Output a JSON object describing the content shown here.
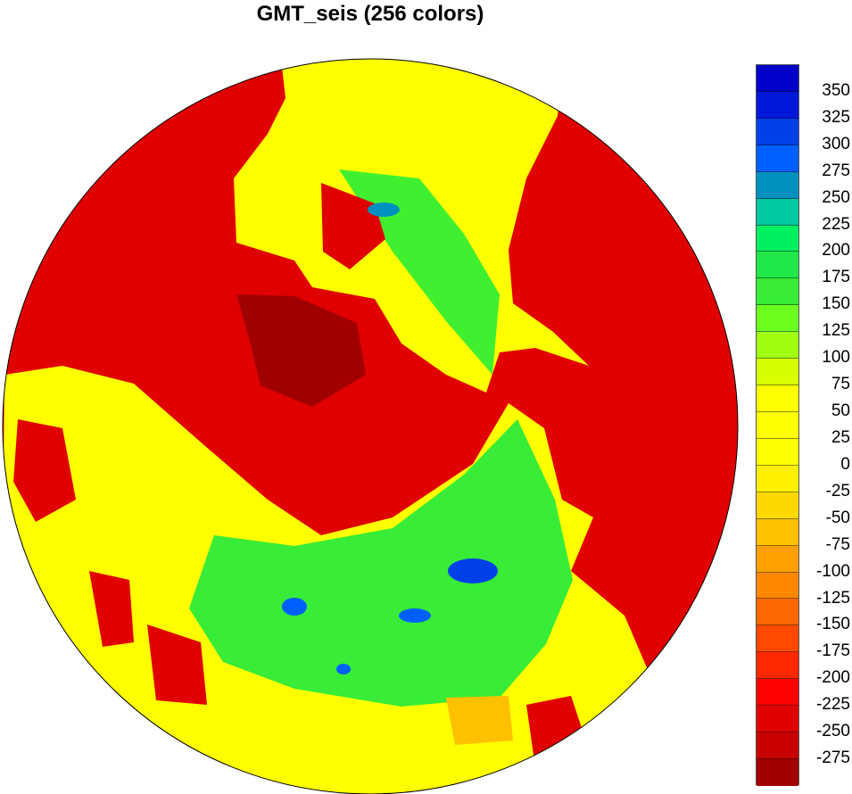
{
  "title": "GMT_seis (256 colors)",
  "map": {
    "projection": "polar-stereographic",
    "colors": {
      "ocean_low": "#e00000",
      "ice_sheet": "#a00000",
      "land_mid": "#ffff00",
      "high": "#20e848",
      "peak": "#0040e8",
      "orange": "#ffc000"
    }
  },
  "colorbar": {
    "labels": [
      "350",
      "325",
      "300",
      "275",
      "250",
      "225",
      "200",
      "175",
      "150",
      "125",
      "100",
      "75",
      "50",
      "25",
      "0",
      "-25",
      "-50",
      "-75",
      "-100",
      "-125",
      "-150",
      "-175",
      "-200",
      "-225",
      "-250",
      "-275"
    ],
    "colors": [
      "#0000c8",
      "#0018d8",
      "#0040e8",
      "#0060ff",
      "#0090c0",
      "#00c8a0",
      "#00f060",
      "#20e848",
      "#38ec38",
      "#6cff20",
      "#a0ff10",
      "#d8ff00",
      "#ffff00",
      "#ffff00",
      "#ffff00",
      "#fff000",
      "#ffd800",
      "#ffc000",
      "#ffa000",
      "#ff8800",
      "#ff6800",
      "#ff4800",
      "#ff2800",
      "#ff0000",
      "#e00000",
      "#c80000",
      "#a00000"
    ]
  }
}
